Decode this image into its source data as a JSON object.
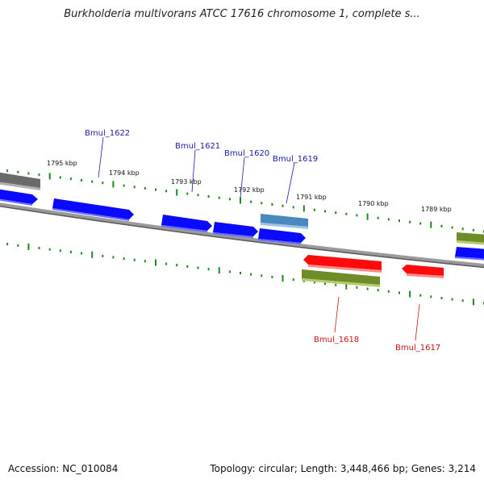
{
  "title": "Burkholderia multivorans ATCC 17616 chromosome 1, complete s...",
  "footer": {
    "accession": "Accession: NC_010084",
    "summary": "Topology: circular; Length: 3,448,466 bp; Genes: 3,214"
  },
  "colors": {
    "forward_gene": "#0a0aff",
    "reverse_gene": "#ff0a0a",
    "highlight_gene": "#4a88c0",
    "olive_feature": "#6e8c28",
    "gray_feature": "#707070",
    "backbone": "#808080",
    "tick": "#1a8a1a",
    "forward_label": "#1a1aaa",
    "reverse_label": "#cc1111"
  },
  "ticks": [
    {
      "label": "1795 kbp"
    },
    {
      "label": "1794 kbp"
    },
    {
      "label": "1793 kbp"
    },
    {
      "label": "1792 kbp"
    },
    {
      "label": "1791 kbp"
    },
    {
      "label": "1790 kbp"
    },
    {
      "label": "1789 kbp"
    }
  ],
  "genes_forward": [
    {
      "name": "Bmul_1622"
    },
    {
      "name": "Bmul_1621"
    },
    {
      "name": "Bmul_1620"
    },
    {
      "name": "Bmul_1619"
    }
  ],
  "genes_reverse": [
    {
      "name": "Bmul_1618"
    },
    {
      "name": "Bmul_1617"
    }
  ]
}
